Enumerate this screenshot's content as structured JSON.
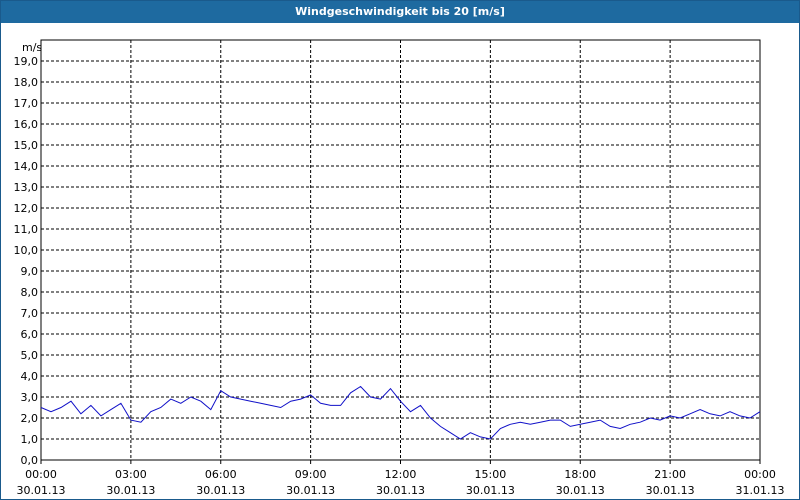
{
  "colors": {
    "titlebar": "#1e6aa0",
    "series": "#1010c8",
    "grid": "#000000"
  },
  "chart_data": {
    "type": "line",
    "title": "Windgeschwindigkeit bis 20 [m/s]",
    "ylabel": "m/s",
    "ylim": [
      0,
      20
    ],
    "grid": true,
    "yticks": [
      "0,0",
      "1,0",
      "2,0",
      "3,0",
      "4,0",
      "5,0",
      "6,0",
      "7,0",
      "8,0",
      "9,0",
      "10,0",
      "11,0",
      "12,0",
      "13,0",
      "14,0",
      "15,0",
      "16,0",
      "17,0",
      "18,0",
      "19,0"
    ],
    "xticks": [
      {
        "time": "00:00",
        "date": "30.01.13"
      },
      {
        "time": "03:00",
        "date": "30.01.13"
      },
      {
        "time": "06:00",
        "date": "30.01.13"
      },
      {
        "time": "09:00",
        "date": "30.01.13"
      },
      {
        "time": "12:00",
        "date": "30.01.13"
      },
      {
        "time": "15:00",
        "date": "30.01.13"
      },
      {
        "time": "18:00",
        "date": "30.01.13"
      },
      {
        "time": "21:00",
        "date": "30.01.13"
      },
      {
        "time": "00:00",
        "date": "31.01.13"
      }
    ],
    "series": [
      {
        "x": [
          "30.01.13 00:00",
          "30.01.13 00:20",
          "30.01.13 00:40",
          "30.01.13 01:00",
          "30.01.13 01:20",
          "30.01.13 01:40",
          "30.01.13 02:00",
          "30.01.13 02:20",
          "30.01.13 02:40",
          "30.01.13 03:00",
          "30.01.13 03:20",
          "30.01.13 03:40",
          "30.01.13 04:00",
          "30.01.13 04:20",
          "30.01.13 04:40",
          "30.01.13 05:00",
          "30.01.13 05:20",
          "30.01.13 05:40",
          "30.01.13 06:00",
          "30.01.13 06:20",
          "30.01.13 06:40",
          "30.01.13 07:00",
          "30.01.13 07:20",
          "30.01.13 07:40",
          "30.01.13 08:00",
          "30.01.13 08:20",
          "30.01.13 08:40",
          "30.01.13 09:00",
          "30.01.13 09:20",
          "30.01.13 09:40",
          "30.01.13 10:00",
          "30.01.13 10:20",
          "30.01.13 10:40",
          "30.01.13 11:00",
          "30.01.13 11:20",
          "30.01.13 11:40",
          "30.01.13 12:00",
          "30.01.13 12:20",
          "30.01.13 12:40",
          "30.01.13 13:00",
          "30.01.13 13:20",
          "30.01.13 13:40",
          "30.01.13 14:00",
          "30.01.13 14:20",
          "30.01.13 14:40",
          "30.01.13 15:00",
          "30.01.13 15:20",
          "30.01.13 15:40",
          "30.01.13 16:00",
          "30.01.13 16:20",
          "30.01.13 16:40",
          "30.01.13 17:00",
          "30.01.13 17:20",
          "30.01.13 17:40",
          "30.01.13 18:00",
          "30.01.13 18:20",
          "30.01.13 18:40",
          "30.01.13 19:00",
          "30.01.13 19:20",
          "30.01.13 19:40",
          "30.01.13 20:00",
          "30.01.13 20:20",
          "30.01.13 20:40",
          "30.01.13 21:00",
          "30.01.13 21:20",
          "30.01.13 21:40",
          "30.01.13 22:00",
          "30.01.13 22:20",
          "30.01.13 22:40",
          "30.01.13 23:00",
          "30.01.13 23:20",
          "30.01.13 23:40",
          "31.01.13 00:00"
        ],
        "values": [
          2.5,
          2.3,
          2.5,
          2.8,
          2.2,
          2.6,
          2.1,
          2.4,
          2.7,
          1.9,
          1.8,
          2.3,
          2.5,
          2.9,
          2.7,
          3.0,
          2.8,
          2.4,
          3.3,
          3.0,
          2.9,
          2.8,
          2.7,
          2.6,
          2.5,
          2.8,
          2.9,
          3.1,
          2.7,
          2.6,
          2.6,
          3.2,
          3.5,
          3.0,
          2.9,
          3.4,
          2.8,
          2.3,
          2.6,
          2.0,
          1.6,
          1.3,
          1.0,
          1.3,
          1.1,
          1.0,
          1.5,
          1.7,
          1.8,
          1.7,
          1.8,
          1.9,
          1.9,
          1.6,
          1.7,
          1.8,
          1.9,
          1.6,
          1.5,
          1.7,
          1.8,
          2.0,
          1.9,
          2.1,
          2.0,
          2.2,
          2.4,
          2.2,
          2.1,
          2.3,
          2.1,
          2.0,
          2.3
        ]
      }
    ]
  }
}
